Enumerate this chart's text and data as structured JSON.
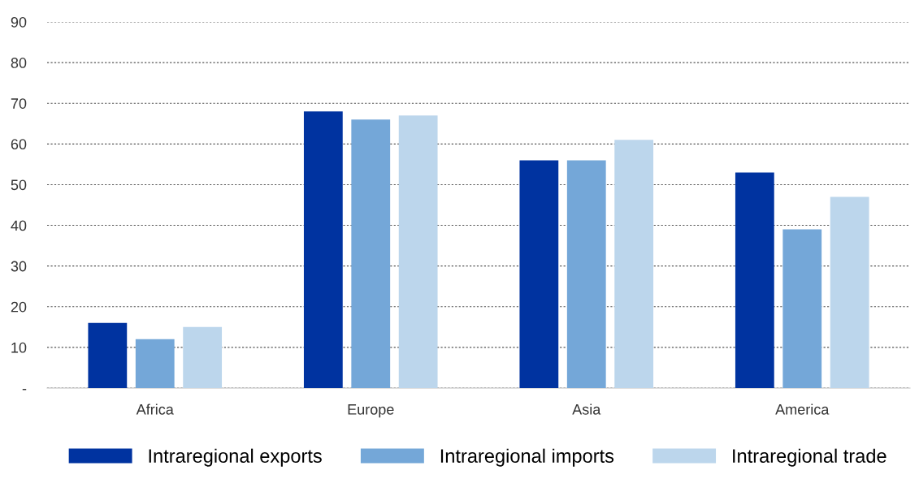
{
  "chart_data": {
    "type": "bar",
    "categories": [
      "Africa",
      "Europe",
      "Asia",
      "America"
    ],
    "series": [
      {
        "name": "Intraregional exports",
        "color": "#0033a0",
        "values": [
          16,
          68,
          56,
          53
        ]
      },
      {
        "name": "Intraregional imports",
        "color": "#74a7d8",
        "values": [
          12,
          66,
          56,
          39
        ]
      },
      {
        "name": "Intraregional trade",
        "color": "#bcd6ec",
        "values": [
          15,
          67,
          61,
          47
        ]
      }
    ],
    "ylim": [
      0,
      90
    ],
    "yticks": [
      {
        "value": 0,
        "label": "-"
      },
      10,
      20,
      30,
      40,
      50,
      60,
      70,
      80,
      90
    ],
    "grid": "y",
    "legend": "bottom"
  }
}
